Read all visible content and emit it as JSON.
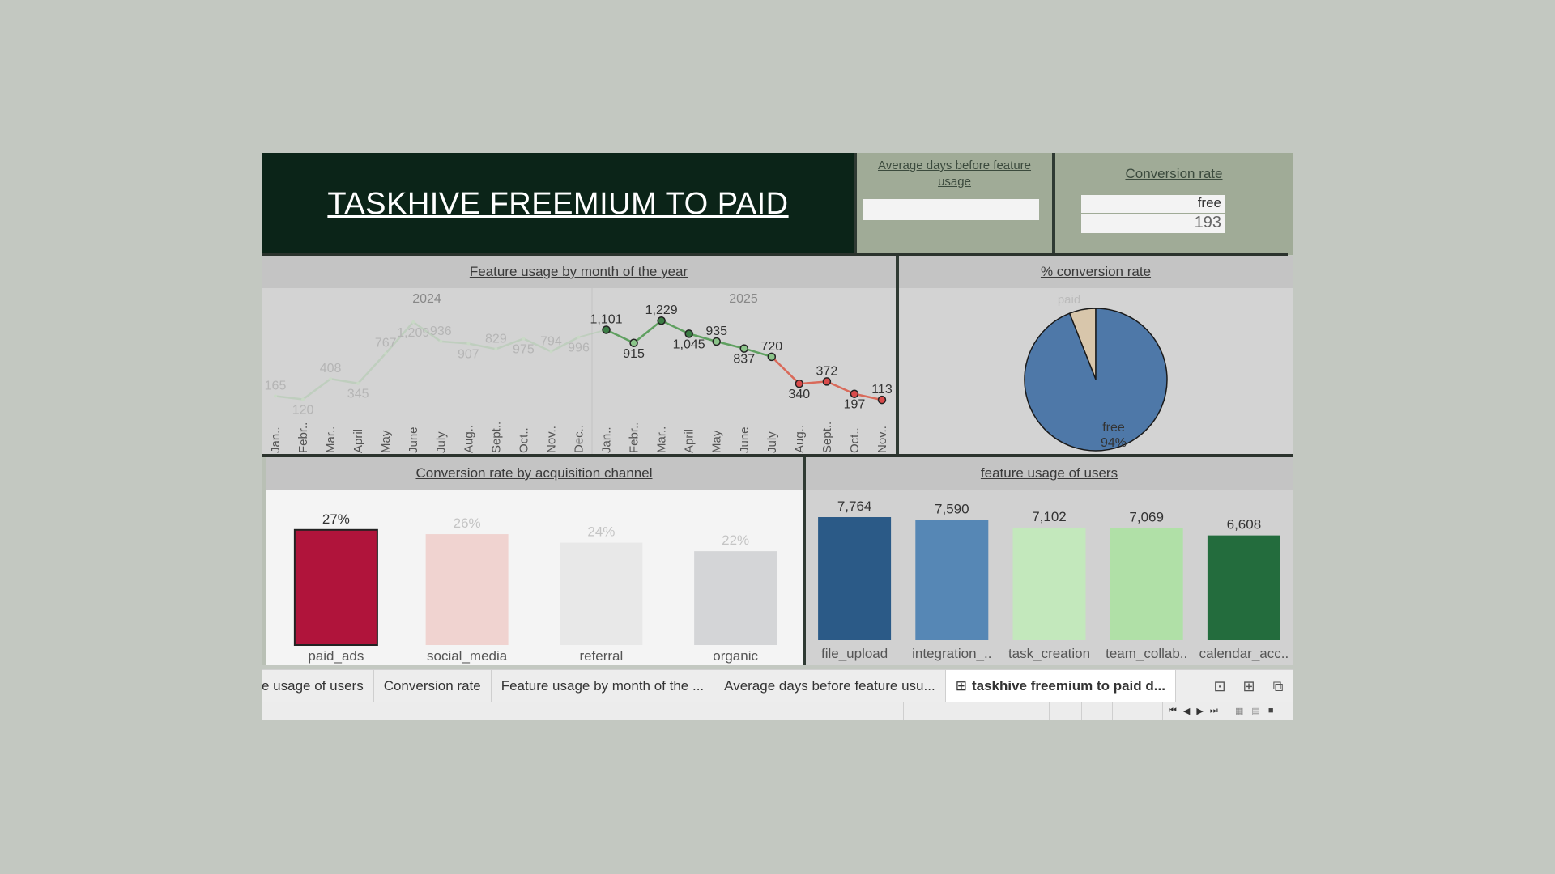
{
  "title": "TASKHIVE FREEMIUM TO PAID",
  "kpi_avg_days": {
    "label": "Average days before feature usage",
    "value": ""
  },
  "kpi_conversion": {
    "label": "Conversion rate",
    "category": "free",
    "value": "193"
  },
  "line_panel": {
    "title": "Feature usage by month of the year",
    "years": [
      "2024",
      "2025"
    ],
    "months_2024": [
      "Jan..",
      "Febr..",
      "Mar..",
      "April",
      "May",
      "June",
      "July",
      "Aug..",
      "Sept..",
      "Oct..",
      "Nov..",
      "Dec.."
    ],
    "months_2025": [
      "Jan..",
      "Febr..",
      "Mar..",
      "April",
      "May",
      "June",
      "July",
      "Aug..",
      "Sept..",
      "Oct..",
      "Nov.."
    ]
  },
  "pie_panel": {
    "title": "% conversion rate"
  },
  "bar_channel_panel": {
    "title": "Conversion rate by acquisition channel"
  },
  "bar_feature_panel": {
    "title": "feature usage of users"
  },
  "chart_data": [
    {
      "type": "line",
      "title": "Feature usage by month of the year",
      "series": [
        {
          "name": "2024",
          "x": [
            "Jan..",
            "Febr..",
            "Mar..",
            "April",
            "May",
            "June",
            "July",
            "Aug..",
            "Sept..",
            "Oct..",
            "Nov..",
            "Dec.."
          ],
          "values": [
            165,
            120,
            408,
            345,
            767,
            1209,
            936,
            907,
            829,
            975,
            794,
            996
          ],
          "labels": [
            "165",
            "120",
            "408",
            "345",
            "767",
            "1,209",
            "936",
            "907",
            "829",
            "975",
            "794",
            "996"
          ]
        },
        {
          "name": "2025",
          "x": [
            "Jan..",
            "Febr..",
            "Mar..",
            "April",
            "May",
            "June",
            "July",
            "Aug..",
            "Sept..",
            "Oct..",
            "Nov.."
          ],
          "values": [
            1101,
            915,
            1229,
            1045,
            935,
            837,
            720,
            340,
            372,
            197,
            113
          ],
          "labels": [
            "1,101",
            "915",
            "1,229",
            "1,045",
            "935",
            "837",
            "720",
            "340",
            "372",
            "197",
            "113"
          ]
        }
      ],
      "ylim": [
        0,
        1300
      ],
      "colors": {
        "low": "#d9534f",
        "high": "#2f6b3a"
      }
    },
    {
      "type": "pie",
      "title": "% conversion rate",
      "slices": [
        {
          "label": "paid",
          "value": 6,
          "color": "#d8c6ab"
        },
        {
          "label": "free",
          "value": 94,
          "color": "#4e78a8",
          "display": "94%"
        }
      ]
    },
    {
      "type": "bar",
      "title": "Conversion rate by acquisition channel",
      "categories": [
        "paid_ads",
        "social_media",
        "referral",
        "organic"
      ],
      "values": [
        27,
        26,
        24,
        22
      ],
      "labels": [
        "27%",
        "26%",
        "24%",
        "22%"
      ],
      "colors": [
        "#b0143b",
        "#f0d3d0",
        "#e8e8e8",
        "#d4d5d7"
      ],
      "ylim": [
        0,
        30
      ]
    },
    {
      "type": "bar",
      "title": "feature usage of users",
      "categories": [
        "file_upload",
        "integration_..",
        "task_creation",
        "team_collab..",
        "calendar_acc.."
      ],
      "values": [
        7764,
        7590,
        7102,
        7069,
        6608
      ],
      "labels": [
        "7,764",
        "7,590",
        "7,102",
        "7,069",
        "6,608"
      ],
      "colors": [
        "#2b5a87",
        "#5687b5",
        "#c3e8bc",
        "#b0e0a7",
        "#236c3d"
      ],
      "ylim": [
        0,
        8000
      ]
    }
  ],
  "tabs": {
    "items": [
      "e usage of users",
      "Conversion rate",
      "Feature usage by month of the ...",
      "Average days before feature usu...",
      "taskhive freemium to paid d..."
    ],
    "active_index": 4
  }
}
